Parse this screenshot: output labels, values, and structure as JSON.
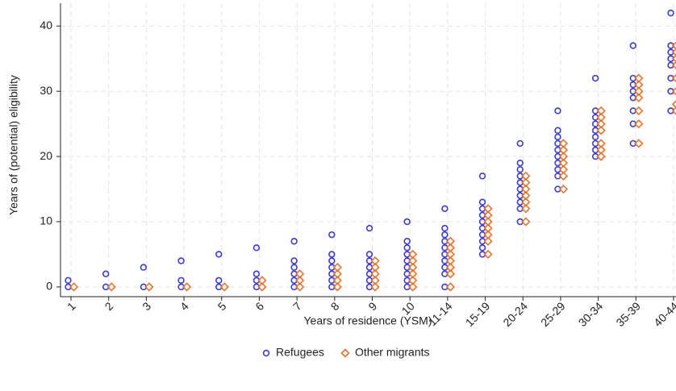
{
  "chart_data": {
    "type": "strip",
    "x_label": "Years of residence (YSM)",
    "y_label": "Years of (potential) eligibility",
    "categories": [
      "1",
      "2",
      "3",
      "4",
      "5",
      "6",
      "7",
      "8",
      "9",
      "10",
      "11-14",
      "15-19",
      "20-24",
      "25-29",
      "30-34",
      "35-39",
      "40-44"
    ],
    "series": [
      {
        "name": "Refugees",
        "color": "#3b3bd6",
        "marker": "circle",
        "values": [
          [
            0,
            1
          ],
          [
            0,
            2
          ],
          [
            0,
            3
          ],
          [
            0,
            1,
            4
          ],
          [
            0,
            1,
            5
          ],
          [
            0,
            1,
            2,
            6
          ],
          [
            0,
            1,
            2,
            3,
            4,
            7
          ],
          [
            0,
            1,
            2,
            3,
            4,
            5,
            8
          ],
          [
            0,
            1,
            2,
            3,
            4,
            5,
            9
          ],
          [
            0,
            1,
            2,
            3,
            4,
            5,
            6,
            7,
            10
          ],
          [
            0,
            2,
            3,
            4,
            5,
            6,
            7,
            8,
            9,
            12
          ],
          [
            5,
            6,
            7,
            8,
            9,
            10,
            11,
            12,
            13,
            17
          ],
          [
            10,
            12,
            13,
            14,
            15,
            16,
            17,
            18,
            19,
            22
          ],
          [
            15,
            17,
            18,
            19,
            20,
            21,
            22,
            23,
            24,
            27
          ],
          [
            20,
            21,
            22,
            23,
            24,
            25,
            26,
            27,
            32
          ],
          [
            22,
            25,
            27,
            29,
            30,
            31,
            32,
            37
          ],
          [
            27,
            30,
            32,
            34,
            35,
            36,
            37,
            42
          ]
        ]
      },
      {
        "name": "Other migrants",
        "color": "#e8742a",
        "marker": "diamond",
        "values": [
          [
            0
          ],
          [
            0
          ],
          [
            0
          ],
          [
            0
          ],
          [
            0
          ],
          [
            0,
            1
          ],
          [
            0,
            1,
            2
          ],
          [
            0,
            1,
            2,
            3
          ],
          [
            0,
            1,
            2,
            3,
            4
          ],
          [
            0,
            1,
            2,
            3,
            4,
            5
          ],
          [
            0,
            2,
            3,
            4,
            5,
            6,
            7
          ],
          [
            5,
            7,
            8,
            9,
            10,
            11,
            12
          ],
          [
            10,
            12,
            13,
            14,
            15,
            16,
            17
          ],
          [
            15,
            17,
            18,
            19,
            20,
            21,
            22
          ],
          [
            20,
            21,
            22,
            24,
            25,
            26,
            27
          ],
          [
            22,
            25,
            27,
            29,
            30,
            31,
            32
          ],
          [
            27,
            28,
            30,
            32,
            34,
            35,
            36,
            37
          ]
        ]
      }
    ],
    "ylim": [
      -1.5,
      43.5
    ],
    "yticks": [
      0,
      10,
      20,
      30,
      40
    ],
    "grid": true,
    "legend": "bottom"
  }
}
